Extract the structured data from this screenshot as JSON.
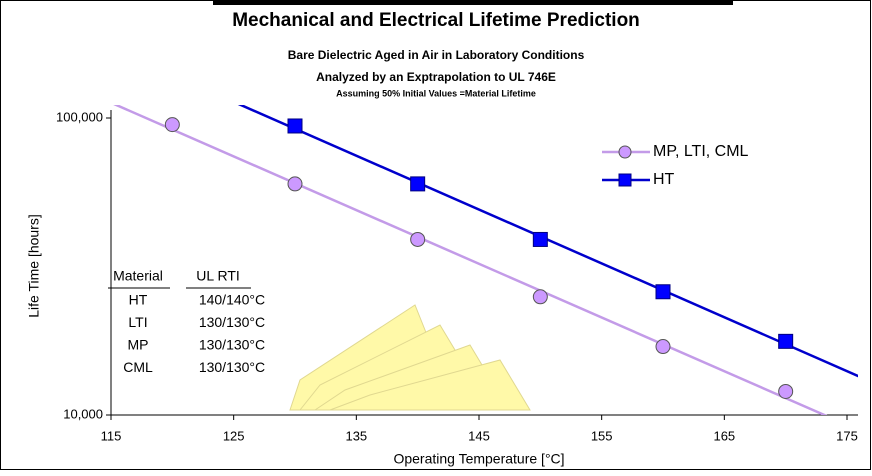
{
  "chart_data": {
    "type": "scatter",
    "title": "Mechanical and Electrical Lifetime Prediction",
    "subtitles": [
      "Bare Dielectric Aged in Air in Laboratory Conditions",
      "Analyzed by an Exptrapolation to UL 746E",
      "Assuming 50% Initial Values =Material Lifetime"
    ],
    "x_label": "Operating Temperature [°C]",
    "y_label": "Life Time [hours]",
    "log_y": true,
    "trendline": true,
    "xlim": [
      115,
      175
    ],
    "xticks": [
      115,
      125,
      135,
      145,
      155,
      165,
      175
    ],
    "ylim": [
      10000,
      100000
    ],
    "yticks": [
      {
        "value": 10000,
        "label": "10,000"
      },
      {
        "value": 100000,
        "label": "100,000"
      }
    ],
    "series": [
      {
        "name": "MP, LTI, CML",
        "color": "#cc99ff",
        "line_color": "#c39be8",
        "marker": "circle",
        "x": [
          120,
          130,
          140,
          150,
          160,
          170
        ],
        "values": [
          95000,
          60000,
          39000,
          25000,
          17000,
          12000
        ]
      },
      {
        "name": "HT",
        "color": "#0000ff",
        "line_color": "#0000cc",
        "marker": "square",
        "x": [
          130,
          140,
          150,
          160,
          170
        ],
        "values": [
          94000,
          60000,
          39000,
          26000,
          17700
        ]
      }
    ],
    "table": {
      "header": [
        "Material",
        "UL RTI"
      ],
      "rows": [
        [
          "HT",
          "140/140°C"
        ],
        [
          "LTI",
          "130/130°C"
        ],
        [
          "MP",
          "130/130°C"
        ],
        [
          "CML",
          "130/130°C"
        ]
      ]
    }
  }
}
